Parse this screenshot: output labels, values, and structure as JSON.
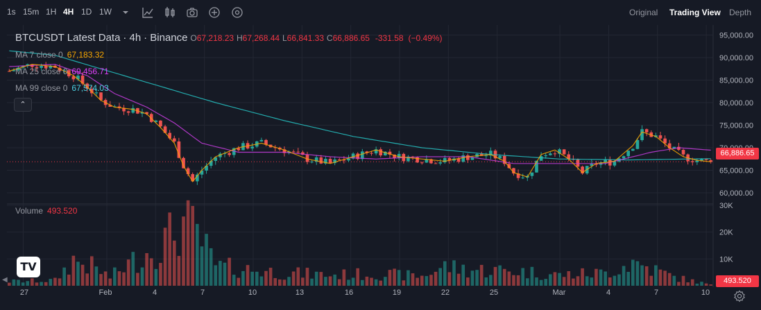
{
  "toolbar": {
    "intervals": [
      "1s",
      "15m",
      "1H",
      "4H",
      "1D",
      "1W"
    ],
    "active_interval": "4H",
    "icons": [
      "chevron-down-icon",
      "indicators-icon",
      "candle-type-icon",
      "camera-icon",
      "plus-circle-icon",
      "settings-circle-icon"
    ],
    "views": [
      "Original",
      "Trading View",
      "Depth"
    ],
    "active_view": "Trading View"
  },
  "legend": {
    "symbol": "BTCUSDT Latest Data",
    "interval": "4h",
    "exchange": "Binance",
    "open": "67,218.23",
    "high": "67,268.44",
    "low": "66,841.33",
    "close": "66,886.65",
    "change": "-331.58",
    "change_pct": "(−0.49%)",
    "ma7_label": "MA 7 close 0",
    "ma7_value": "67,183.32",
    "ma25_label": "MA 25 close 0",
    "ma25_value": "69,456.71",
    "ma99_label": "MA 99 close 0",
    "ma99_value": "67,574.03",
    "collapse_symbol": "⌃",
    "volume_label": "Volume",
    "volume_value": "493.520"
  },
  "colors": {
    "up": "#26a69a",
    "down": "#ef5350",
    "ma7": "#f7a600",
    "ma25": "#c83de0",
    "ma99": "#26c6c6",
    "price_tag": "#f23645"
  },
  "price_axis": {
    "labels": [
      "95,000.00",
      "90,000.00",
      "85,000.00",
      "80,000.00",
      "75,000.00",
      "70,000.00",
      "65,000.00",
      "60,000.00"
    ],
    "current_price": "66,886.65"
  },
  "volume_axis": {
    "labels": [
      "30K",
      "20K",
      "10K"
    ],
    "current_volume": "493.520"
  },
  "time_axis": {
    "labels": [
      "27",
      "Feb",
      "4",
      "7",
      "10",
      "13",
      "16",
      "19",
      "22",
      "25",
      "Mar",
      "4",
      "7",
      "10"
    ]
  },
  "logo_text": "TV",
  "chart_data": {
    "type": "candlestick",
    "price_range": [
      58000,
      96000
    ],
    "volume_range": [
      0,
      30000
    ],
    "close_path": [
      [
        0,
        87000
      ],
      [
        5,
        88500
      ],
      [
        10,
        88000
      ],
      [
        14,
        86000
      ],
      [
        17,
        83500
      ],
      [
        20,
        80500
      ],
      [
        23,
        79000
      ],
      [
        27,
        78500
      ],
      [
        30,
        77500
      ],
      [
        33,
        74500
      ],
      [
        36,
        71000
      ],
      [
        38,
        66000
      ],
      [
        40,
        62500
      ],
      [
        42,
        65000
      ],
      [
        45,
        68000
      ],
      [
        50,
        70000
      ],
      [
        55,
        71000
      ],
      [
        60,
        69500
      ],
      [
        65,
        67500
      ],
      [
        70,
        66500
      ],
      [
        75,
        68000
      ],
      [
        80,
        69500
      ],
      [
        85,
        68000
      ],
      [
        90,
        67500
      ],
      [
        95,
        67000
      ],
      [
        100,
        68000
      ],
      [
        105,
        68500
      ],
      [
        108,
        67000
      ],
      [
        110,
        64500
      ],
      [
        113,
        63500
      ],
      [
        116,
        68500
      ],
      [
        119,
        69500
      ],
      [
        122,
        67500
      ],
      [
        125,
        64500
      ],
      [
        128,
        66500
      ],
      [
        132,
        67000
      ],
      [
        136,
        70500
      ],
      [
        138,
        73500
      ],
      [
        141,
        72500
      ],
      [
        144,
        70000
      ],
      [
        147,
        68000
      ],
      [
        150,
        67200
      ],
      [
        153,
        66886.65
      ]
    ],
    "ma99_path": [
      [
        0,
        91500
      ],
      [
        10,
        90500
      ],
      [
        20,
        87500
      ],
      [
        30,
        84500
      ],
      [
        45,
        80000
      ],
      [
        60,
        76000
      ],
      [
        75,
        72500
      ],
      [
        90,
        70000
      ],
      [
        105,
        68500
      ],
      [
        120,
        67500
      ],
      [
        135,
        67300
      ],
      [
        153,
        67574.03
      ]
    ],
    "ma25_path": [
      [
        0,
        88000
      ],
      [
        10,
        88500
      ],
      [
        17,
        86000
      ],
      [
        23,
        82000
      ],
      [
        30,
        79000
      ],
      [
        36,
        75500
      ],
      [
        42,
        71000
      ],
      [
        50,
        69000
      ],
      [
        60,
        69000
      ],
      [
        70,
        68000
      ],
      [
        80,
        67500
      ],
      [
        90,
        68000
      ],
      [
        100,
        68000
      ],
      [
        110,
        66500
      ],
      [
        120,
        66500
      ],
      [
        130,
        66500
      ],
      [
        140,
        69000
      ],
      [
        146,
        70000
      ],
      [
        153,
        69456.71
      ]
    ],
    "volume_profile": [
      [
        0,
        2000
      ],
      [
        10,
        2500
      ],
      [
        14,
        12000
      ],
      [
        18,
        9000
      ],
      [
        22,
        4000
      ],
      [
        28,
        13000
      ],
      [
        33,
        19000
      ],
      [
        38,
        29000
      ],
      [
        41,
        24000
      ],
      [
        45,
        9000
      ],
      [
        50,
        8000
      ],
      [
        60,
        6000
      ],
      [
        70,
        5000
      ],
      [
        80,
        5500
      ],
      [
        90,
        4500
      ],
      [
        95,
        9000
      ],
      [
        100,
        7500
      ],
      [
        110,
        7000
      ],
      [
        115,
        6000
      ],
      [
        120,
        5000
      ],
      [
        130,
        6000
      ],
      [
        136,
        11000
      ],
      [
        140,
        8000
      ],
      [
        145,
        4000
      ],
      [
        153,
        493.52
      ]
    ]
  }
}
